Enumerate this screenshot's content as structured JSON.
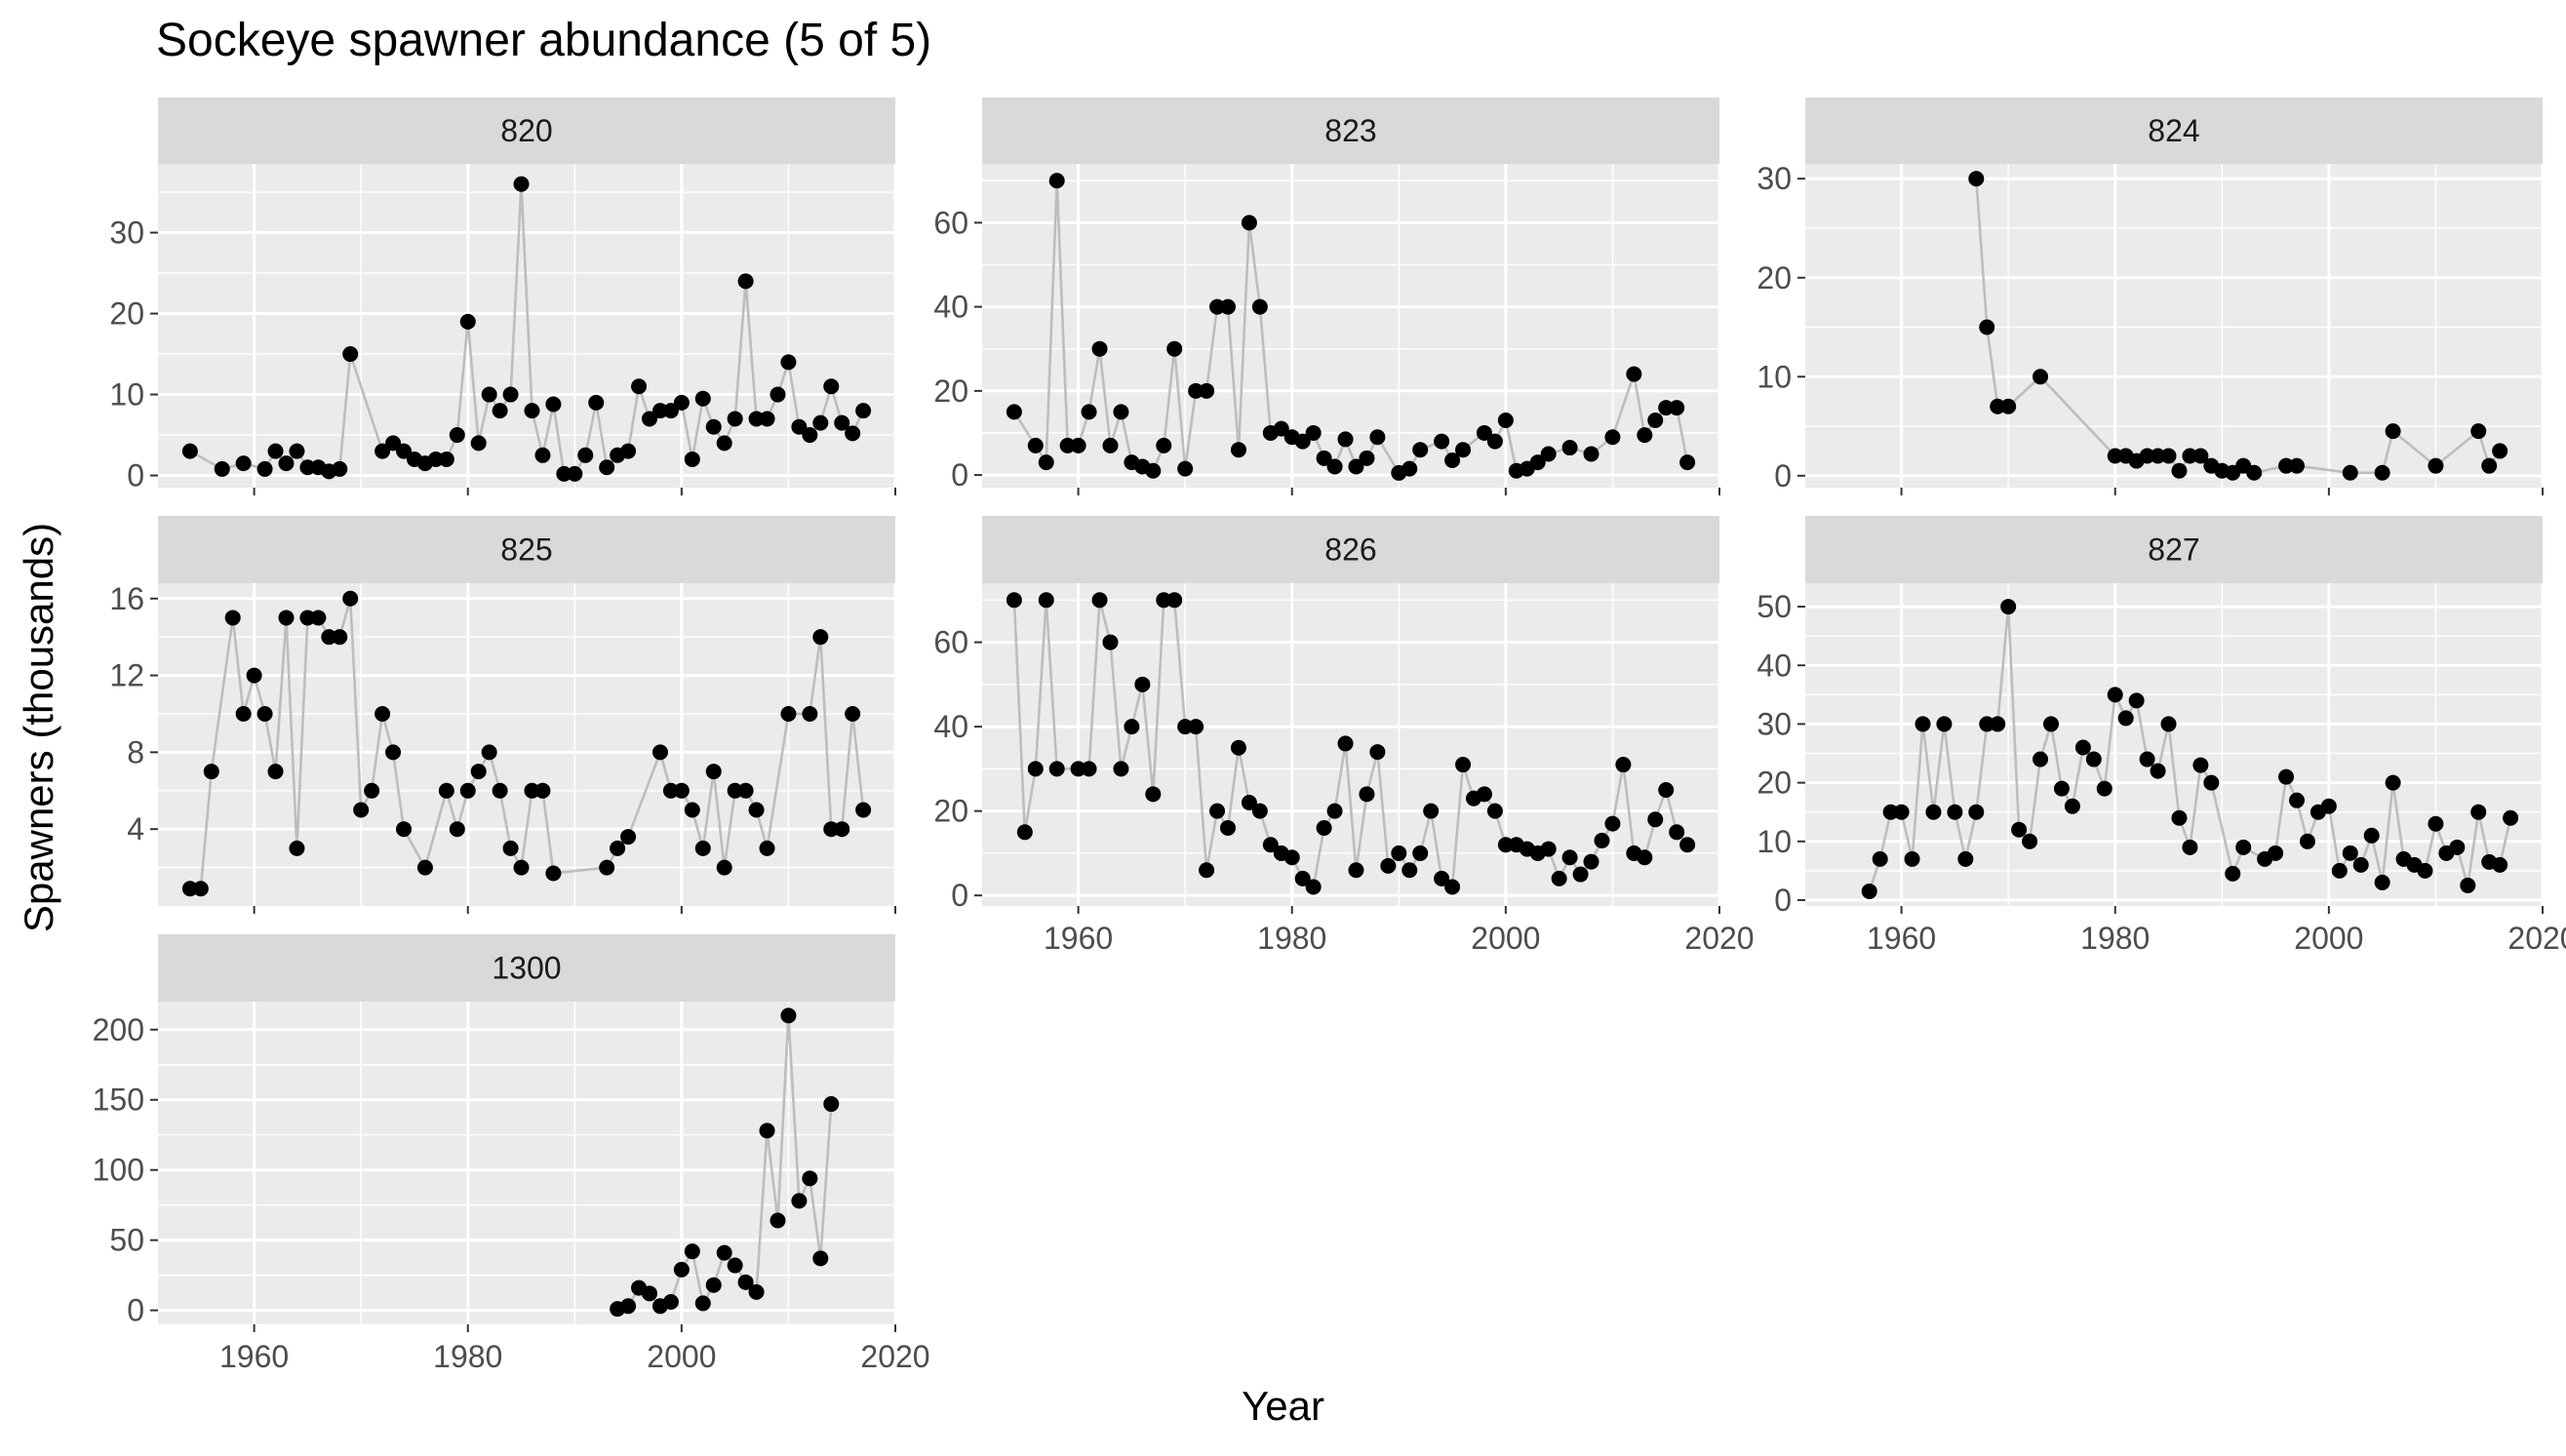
{
  "title": "Sockeye spawner abundance (5 of 5)",
  "xlabel": "Year",
  "ylabel": "Spawners (thousands)",
  "chart_data": {
    "type": "line",
    "layout": "faceted",
    "title": "Sockeye spawner abundance (5 of 5)",
    "xlabel": "Year",
    "ylabel": "Spawners (thousands)",
    "xlim": [
      1951,
      2020
    ],
    "xticks": [
      1960,
      1980,
      2000,
      2020
    ],
    "grid": true,
    "colors": {
      "panel_bg": "#EBEBEB",
      "strip_bg": "#D9D9D9",
      "grid": "#FFFFFF",
      "line": "#BDBDBD",
      "point": "#000000"
    },
    "facets": [
      {
        "name": "820",
        "ylim": [
          -1.5,
          38.5
        ],
        "yticks": [
          0,
          10,
          20,
          30
        ],
        "x": [
          1954,
          1957,
          1959,
          1961,
          1962,
          1963,
          1964,
          1965,
          1966,
          1967,
          1968,
          1969,
          1972,
          1973,
          1974,
          1975,
          1976,
          1977,
          1978,
          1979,
          1980,
          1981,
          1982,
          1983,
          1984,
          1985,
          1986,
          1987,
          1988,
          1989,
          1990,
          1991,
          1992,
          1993,
          1994,
          1995,
          1996,
          1997,
          1998,
          1999,
          2000,
          2001,
          2002,
          2003,
          2004,
          2005,
          2006,
          2007,
          2008,
          2009,
          2010,
          2011,
          2012,
          2013,
          2014,
          2015,
          2016,
          2017
        ],
        "y": [
          3,
          0.8,
          1.5,
          0.8,
          3,
          1.5,
          3,
          1,
          1,
          0.5,
          0.8,
          15,
          3,
          4,
          3,
          2,
          1.5,
          2,
          2,
          5,
          19,
          4,
          10,
          8,
          10,
          36,
          8,
          2.5,
          8.8,
          0.2,
          0.2,
          2.5,
          9,
          1,
          2.5,
          3,
          11,
          7,
          8,
          8,
          9,
          2,
          9.5,
          6,
          4,
          7,
          24,
          7,
          7,
          10,
          14,
          6,
          5,
          6.5,
          11,
          6.5,
          5.2,
          8
        ]
      },
      {
        "name": "823",
        "ylim": [
          -3,
          74
        ],
        "yticks": [
          0,
          20,
          40,
          60
        ],
        "x": [
          1954,
          1956,
          1957,
          1958,
          1959,
          1960,
          1961,
          1962,
          1963,
          1964,
          1965,
          1966,
          1967,
          1968,
          1969,
          1970,
          1971,
          1972,
          1973,
          1974,
          1975,
          1976,
          1977,
          1978,
          1979,
          1980,
          1981,
          1982,
          1983,
          1984,
          1985,
          1986,
          1987,
          1988,
          1990,
          1991,
          1992,
          1994,
          1995,
          1996,
          1998,
          1999,
          2000,
          2001,
          2002,
          2003,
          2004,
          2006,
          2008,
          2010,
          2012,
          2013,
          2014,
          2015,
          2016,
          2017
        ],
        "y": [
          15,
          7,
          3,
          70,
          7,
          7,
          15,
          30,
          7,
          15,
          3,
          2,
          1,
          7,
          30,
          1.5,
          20,
          20,
          40,
          40,
          6,
          60,
          40,
          10,
          11,
          9,
          8,
          10,
          4,
          2,
          8.5,
          2,
          4,
          9,
          0.5,
          1.5,
          6,
          8,
          3.5,
          6,
          10,
          8,
          13,
          1,
          1.5,
          3,
          5,
          6.5,
          5,
          9,
          24,
          9.5,
          13,
          16,
          16,
          3
        ]
      },
      {
        "name": "824",
        "ylim": [
          -1.2,
          31.5
        ],
        "yticks": [
          0,
          10,
          20,
          30
        ],
        "x": [
          1967,
          1968,
          1969,
          1970,
          1973,
          1980,
          1981,
          1982,
          1983,
          1984,
          1985,
          1986,
          1987,
          1988,
          1989,
          1990,
          1991,
          1992,
          1993,
          1996,
          1997,
          2002,
          2005,
          2006,
          2010,
          2014,
          2015,
          2016
        ],
        "y": [
          30,
          15,
          7,
          7,
          10,
          2,
          2,
          1.5,
          2,
          2,
          2,
          0.5,
          2,
          2,
          1,
          0.5,
          0.3,
          1,
          0.3,
          1,
          1,
          0.3,
          0.3,
          4.5,
          1,
          4.5,
          1,
          2.5
        ]
      },
      {
        "name": "825",
        "ylim": [
          0,
          16.8
        ],
        "yticks": [
          4,
          8,
          12,
          16
        ],
        "x": [
          1954,
          1955,
          1956,
          1958,
          1959,
          1960,
          1961,
          1962,
          1963,
          1964,
          1965,
          1966,
          1967,
          1968,
          1969,
          1970,
          1971,
          1972,
          1973,
          1974,
          1976,
          1978,
          1979,
          1980,
          1981,
          1982,
          1983,
          1984,
          1985,
          1986,
          1987,
          1988,
          1993,
          1994,
          1995,
          1998,
          1999,
          2000,
          2001,
          2002,
          2003,
          2004,
          2005,
          2006,
          2007,
          2008,
          2010,
          2012,
          2013,
          2014,
          2015,
          2016,
          2017
        ],
        "y": [
          0.9,
          0.9,
          7,
          15,
          10,
          12,
          10,
          7,
          15,
          3,
          15,
          15,
          14,
          14,
          16,
          5,
          6,
          10,
          8,
          4,
          2,
          6,
          4,
          6,
          7,
          8,
          6,
          3,
          2,
          6,
          6,
          1.7,
          2,
          3,
          3.6,
          8,
          6,
          6,
          5,
          3,
          7,
          2,
          6,
          6,
          5,
          3,
          10,
          10,
          14,
          4,
          4,
          10,
          5
        ]
      },
      {
        "name": "826",
        "ylim": [
          -2.5,
          74
        ],
        "yticks": [
          0,
          20,
          40,
          60
        ],
        "x": [
          1954,
          1955,
          1956,
          1957,
          1958,
          1960,
          1961,
          1962,
          1963,
          1964,
          1965,
          1966,
          1967,
          1968,
          1969,
          1970,
          1971,
          1972,
          1973,
          1974,
          1975,
          1976,
          1977,
          1978,
          1979,
          1980,
          1981,
          1982,
          1983,
          1984,
          1985,
          1986,
          1987,
          1988,
          1989,
          1990,
          1991,
          1992,
          1993,
          1994,
          1995,
          1996,
          1997,
          1998,
          1999,
          2000,
          2001,
          2002,
          2003,
          2004,
          2005,
          2006,
          2007,
          2008,
          2009,
          2010,
          2011,
          2012,
          2013,
          2014,
          2015,
          2016,
          2017
        ],
        "y": [
          70,
          15,
          30,
          70,
          30,
          30,
          30,
          70,
          60,
          30,
          40,
          50,
          24,
          70,
          70,
          40,
          40,
          6,
          20,
          16,
          35,
          22,
          20,
          12,
          10,
          9,
          4,
          2,
          16,
          20,
          36,
          6,
          24,
          34,
          7,
          10,
          6,
          10,
          20,
          4,
          2,
          31,
          23,
          24,
          20,
          12,
          12,
          11,
          10,
          11,
          4,
          9,
          5,
          8,
          13,
          17,
          31,
          10,
          9,
          18,
          25,
          15,
          12
        ]
      },
      {
        "name": "827",
        "ylim": [
          -1,
          54
        ],
        "yticks": [
          0,
          10,
          20,
          30,
          40,
          50
        ],
        "x": [
          1957,
          1958,
          1959,
          1960,
          1961,
          1962,
          1963,
          1964,
          1965,
          1966,
          1967,
          1968,
          1969,
          1970,
          1971,
          1972,
          1973,
          1974,
          1975,
          1976,
          1977,
          1978,
          1979,
          1980,
          1981,
          1982,
          1983,
          1984,
          1985,
          1986,
          1987,
          1988,
          1989,
          1991,
          1992,
          1994,
          1995,
          1996,
          1997,
          1998,
          1999,
          2000,
          2001,
          2002,
          2003,
          2004,
          2005,
          2006,
          2007,
          2008,
          2009,
          2010,
          2011,
          2012,
          2013,
          2014,
          2015,
          2016,
          2017
        ],
        "y": [
          1.5,
          7,
          15,
          15,
          7,
          30,
          15,
          30,
          15,
          7,
          15,
          30,
          30,
          50,
          12,
          10,
          24,
          30,
          19,
          16,
          26,
          24,
          19,
          35,
          31,
          34,
          24,
          22,
          30,
          14,
          9,
          23,
          20,
          4.5,
          9,
          7,
          8,
          21,
          17,
          10,
          15,
          16,
          5,
          8,
          6,
          11,
          3,
          20,
          7,
          6,
          5,
          13,
          8,
          9,
          2.5,
          15,
          6.5,
          6,
          14
        ]
      },
      {
        "name": "1300",
        "ylim": [
          -10,
          220
        ],
        "yticks": [
          0,
          50,
          100,
          150,
          200
        ],
        "x": [
          1994,
          1995,
          1996,
          1997,
          1998,
          1999,
          2000,
          2001,
          2002,
          2003,
          2004,
          2005,
          2006,
          2007,
          2008,
          2009,
          2010,
          2011,
          2012,
          2013,
          2014
        ],
        "y": [
          1,
          3,
          16,
          12,
          3,
          6,
          29,
          42,
          5,
          18,
          41,
          32,
          20,
          13,
          128,
          64,
          210,
          78,
          94,
          37,
          147
        ]
      }
    ]
  }
}
